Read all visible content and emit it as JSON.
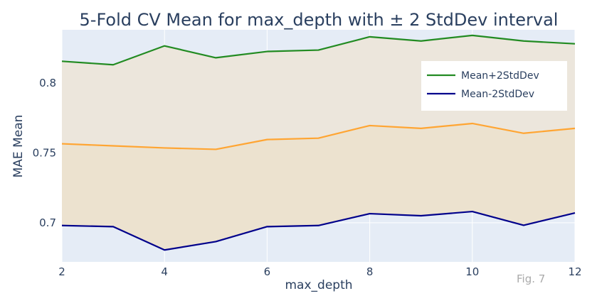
{
  "chart_data": {
    "type": "line",
    "title": "5-Fold CV Mean for max_depth with ± 2 StdDev interval",
    "xlabel": "max_depth",
    "ylabel": "MAE Mean",
    "xlim": [
      2,
      12
    ],
    "ylim": [
      0.672,
      0.838
    ],
    "x_ticks": [
      2,
      4,
      6,
      8,
      10,
      12
    ],
    "y_ticks": [
      0.7,
      0.75,
      0.8
    ],
    "y_tick_labels": [
      "0.7",
      "0.75",
      "0.8"
    ],
    "x": [
      2,
      3,
      4,
      5,
      6,
      7,
      8,
      9,
      10,
      11,
      12
    ],
    "series": [
      {
        "name": "Mean+2StdDev",
        "color": "#228b22",
        "show_in_legend": true,
        "values": [
          0.8155,
          0.813,
          0.8265,
          0.818,
          0.8225,
          0.8235,
          0.833,
          0.83,
          0.834,
          0.83,
          0.828
        ]
      },
      {
        "name": "",
        "color": "#ffa533",
        "show_in_legend": false,
        "values": [
          0.7565,
          0.755,
          0.7535,
          0.7525,
          0.7595,
          0.7605,
          0.7695,
          0.7675,
          0.771,
          0.764,
          0.7675
        ]
      },
      {
        "name": "Mean-2StdDev",
        "color": "#00008b",
        "show_in_legend": true,
        "values": [
          0.698,
          0.6972,
          0.6805,
          0.6865,
          0.6972,
          0.698,
          0.7065,
          0.705,
          0.708,
          0.6982,
          0.707
        ]
      }
    ],
    "fill_colors": {
      "upper_band": "#ece6dc",
      "lower_band": "#ece2cf"
    },
    "plot_background": "#e5ecf6",
    "grid": true,
    "grid_color": "#ffffff",
    "legend_position": "top-right",
    "annotation": "Fig. 7"
  }
}
